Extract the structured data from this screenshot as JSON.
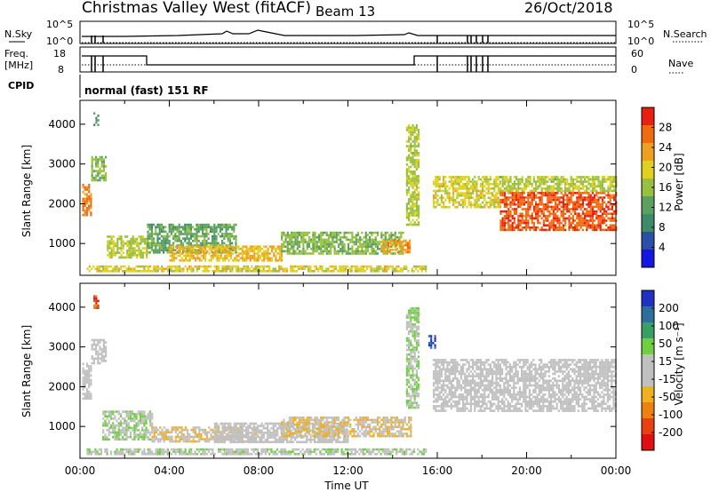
{
  "header": {
    "station": "Christmas Valley West (fitACF)",
    "beam": "Beam 13",
    "date": "26/Oct/2018"
  },
  "params_panel": {
    "nsky_label": "N.Sky",
    "nsky_ticks": [
      "10^5",
      "10^0"
    ],
    "nsearch_label": "N.Search",
    "nsearch_ticks": [
      "10^5",
      "10^0"
    ],
    "freq_label_1": "Freq.",
    "freq_label_2": "[MHz]",
    "freq_ticks": [
      "18",
      "8"
    ],
    "nave_label": "Nave",
    "nave_ticks": [
      "60",
      "0"
    ],
    "cpid_label": "CPID",
    "cpid_text": "normal (fast) 151 RF"
  },
  "colors": {
    "power_scale": [
      "#1515e0",
      "#2a4fa8",
      "#3f8a6a",
      "#5aa060",
      "#98c040",
      "#e0d020",
      "#f0a020",
      "#f06a10",
      "#e82010"
    ],
    "velocity_scale": [
      "#2030c0",
      "#2e6e9a",
      "#38a060",
      "#70d040",
      "#c0c0c0",
      "#c0c0c0",
      "#f0b020",
      "#f08010",
      "#e84010",
      "#e01010"
    ]
  },
  "chart_data": [
    {
      "type": "heatmap",
      "title": "",
      "xlabel": "",
      "ylabel": "Slant Range [km]",
      "xlim": [
        0,
        24
      ],
      "ylim": [
        200,
        4600
      ],
      "y_ticks": [
        1000,
        2000,
        3000,
        4000
      ],
      "colorbar": {
        "label": "Power [dB]",
        "ticks": [
          "4",
          "8",
          "12",
          "16",
          "20",
          "24",
          "28"
        ],
        "range": [
          0,
          30
        ]
      },
      "regions": [
        {
          "t0": 0.1,
          "t1": 0.5,
          "r0": 1700,
          "r1": 2500,
          "value": 24
        },
        {
          "t0": 0.5,
          "t1": 1.2,
          "r0": 2600,
          "r1": 3200,
          "value": 14
        },
        {
          "t0": 0.6,
          "t1": 0.8,
          "r0": 4000,
          "r1": 4300,
          "value": 10
        },
        {
          "t0": 1.2,
          "t1": 3.0,
          "r0": 650,
          "r1": 1200,
          "value": 16
        },
        {
          "t0": 3.0,
          "t1": 7.0,
          "r0": 800,
          "r1": 1500,
          "value": 12
        },
        {
          "t0": 4.0,
          "t1": 9.0,
          "r0": 550,
          "r1": 950,
          "value": 20
        },
        {
          "t0": 9.0,
          "t1": 14.5,
          "r0": 750,
          "r1": 1300,
          "value": 14
        },
        {
          "t0": 13.5,
          "t1": 14.8,
          "r0": 800,
          "r1": 1100,
          "value": 22
        },
        {
          "t0": 0.3,
          "t1": 15.5,
          "r0": 280,
          "r1": 450,
          "value": 18
        },
        {
          "t0": 14.6,
          "t1": 15.2,
          "r0": 1500,
          "r1": 4000,
          "value": 16
        },
        {
          "t0": 15.8,
          "t1": 18.8,
          "r0": 1900,
          "r1": 2700,
          "value": 18
        },
        {
          "t0": 18.8,
          "t1": 24.0,
          "r0": 1350,
          "r1": 2300,
          "value": 26
        },
        {
          "t0": 18.8,
          "t1": 24.0,
          "r0": 2300,
          "r1": 2700,
          "value": 16
        }
      ]
    },
    {
      "type": "heatmap",
      "title": "",
      "xlabel": "Time UT",
      "ylabel": "Slant Range [km]",
      "xlim": [
        0,
        24
      ],
      "ylim": [
        200,
        4600
      ],
      "y_ticks": [
        1000,
        2000,
        3000,
        4000
      ],
      "x_ticks": [
        "00:00",
        "04:00",
        "08:00",
        "12:00",
        "16:00",
        "20:00",
        "00:00"
      ],
      "colorbar": {
        "label": "Velocity [m s⁻¹]",
        "ticks": [
          "200",
          "100",
          "50",
          "15",
          "-15",
          "-50",
          "-100",
          "-200"
        ],
        "range": [
          -250,
          250
        ]
      },
      "regions": [
        {
          "t0": 0.1,
          "t1": 0.5,
          "r0": 1700,
          "r1": 2600,
          "value": 0
        },
        {
          "t0": 0.5,
          "t1": 1.2,
          "r0": 2600,
          "r1": 3200,
          "value": 0
        },
        {
          "t0": 0.6,
          "t1": 0.8,
          "r0": 4000,
          "r1": 4300,
          "value": -180
        },
        {
          "t0": 1.0,
          "t1": 3.2,
          "r0": 700,
          "r1": 1400,
          "value": 40
        },
        {
          "t0": 3.2,
          "t1": 8.0,
          "r0": 650,
          "r1": 1000,
          "value": -35
        },
        {
          "t0": 6.0,
          "t1": 12.0,
          "r0": 600,
          "r1": 1100,
          "value": 0
        },
        {
          "t0": 9.0,
          "t1": 14.8,
          "r0": 750,
          "r1": 1250,
          "value": -40
        },
        {
          "t0": 0.3,
          "t1": 15.5,
          "r0": 280,
          "r1": 450,
          "value": 30
        },
        {
          "t0": 14.6,
          "t1": 15.2,
          "r0": 1500,
          "r1": 4000,
          "value": 40
        },
        {
          "t0": 15.6,
          "t1": 15.9,
          "r0": 3000,
          "r1": 3300,
          "value": 200
        },
        {
          "t0": 15.8,
          "t1": 24.0,
          "r0": 1400,
          "r1": 2700,
          "value": 0
        }
      ]
    }
  ]
}
